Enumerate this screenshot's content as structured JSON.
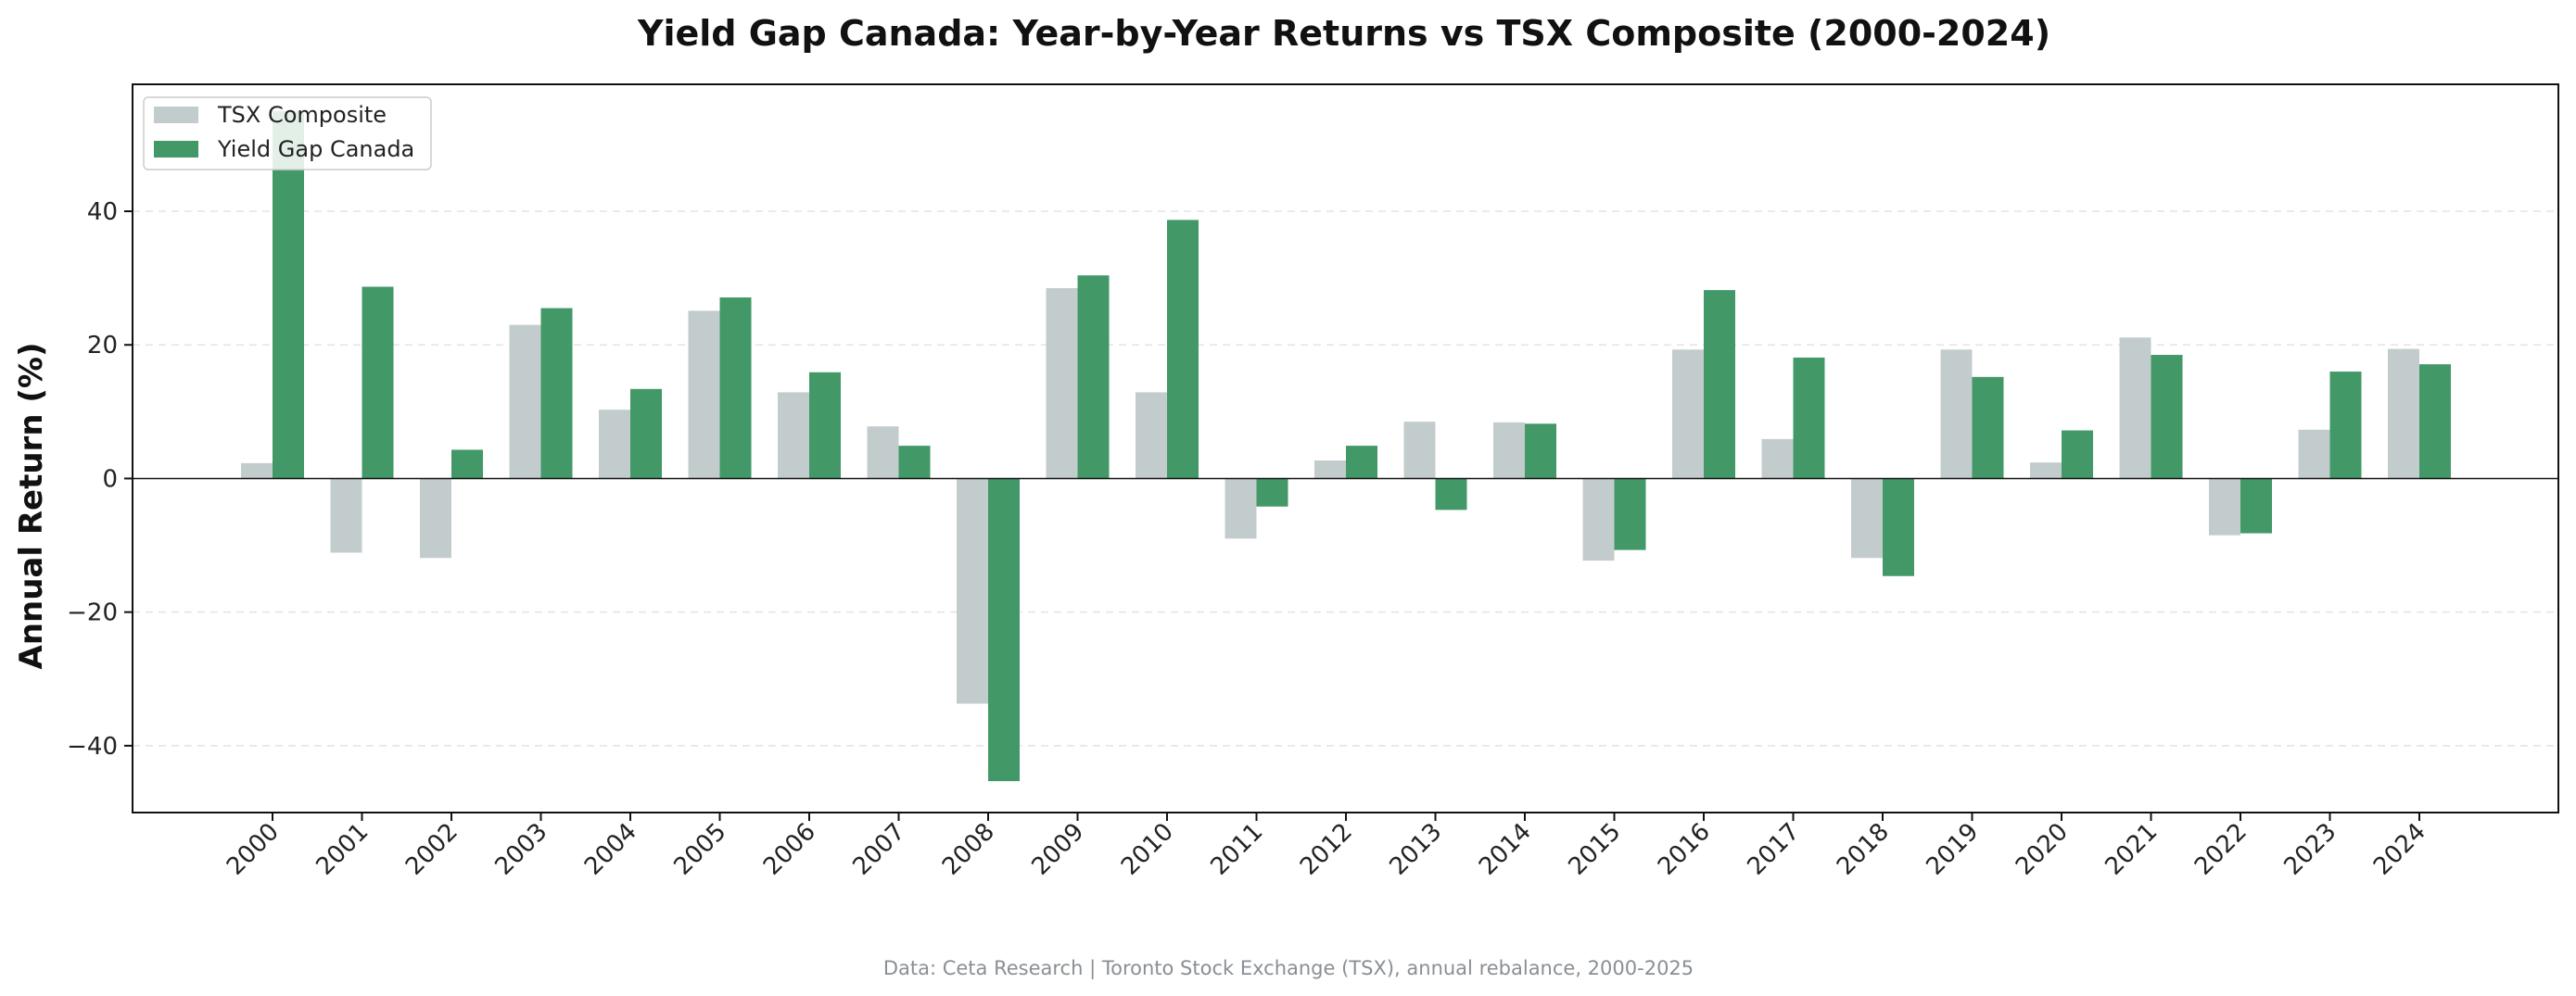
{
  "chart_data": {
    "type": "bar",
    "title": "Yield Gap Canada: Year-by-Year Returns vs TSX Composite (2000-2024)",
    "xlabel": "",
    "ylabel": "Annual Return (%)",
    "ylim": [
      -50,
      59
    ],
    "yticks": [
      -40,
      -20,
      0,
      20,
      40
    ],
    "ytick_labels": [
      "−40",
      "−20",
      "0",
      "20",
      "40"
    ],
    "grid": "horizontal dashed",
    "legend_position": "top-left",
    "categories": [
      "2000",
      "2001",
      "2002",
      "2003",
      "2004",
      "2005",
      "2006",
      "2007",
      "2008",
      "2009",
      "2010",
      "2011",
      "2012",
      "2013",
      "2014",
      "2015",
      "2016",
      "2017",
      "2018",
      "2019",
      "2020",
      "2021",
      "2022",
      "2023",
      "2024"
    ],
    "series": [
      {
        "name": "TSX Composite",
        "color": "#c3cccc",
        "values": [
          2.3,
          -11.1,
          -11.9,
          23.0,
          10.3,
          25.1,
          12.9,
          7.8,
          -33.7,
          28.5,
          12.9,
          -9.0,
          2.7,
          8.5,
          8.4,
          -12.3,
          19.3,
          5.9,
          -11.9,
          19.3,
          2.4,
          21.1,
          -8.5,
          7.3,
          19.4
        ]
      },
      {
        "name": "Yield Gap Canada",
        "color": "#429866",
        "values": [
          55.0,
          28.7,
          4.3,
          25.5,
          13.4,
          27.1,
          15.9,
          4.9,
          -45.3,
          30.4,
          38.7,
          -4.2,
          4.9,
          -4.7,
          8.2,
          -10.7,
          28.2,
          18.1,
          -14.6,
          15.2,
          7.2,
          18.5,
          -8.2,
          16.0,
          17.1
        ]
      }
    ]
  },
  "footer": {
    "source": "Data: Ceta Research | Toronto Stock Exchange (TSX), annual rebalance, 2000-2025"
  }
}
